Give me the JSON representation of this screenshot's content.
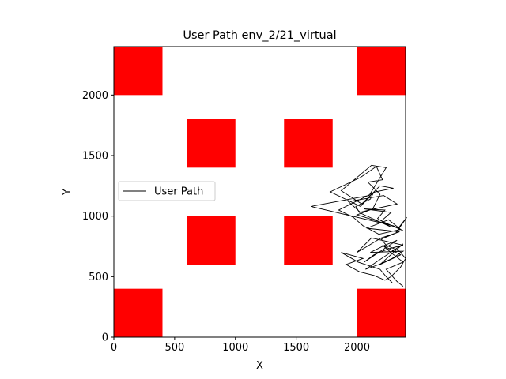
{
  "chart_data": {
    "type": "line",
    "title": "User Path env_2/21_virtual",
    "xlabel": "X",
    "ylabel": "Y",
    "xlim": [
      0,
      2400
    ],
    "ylim": [
      0,
      2400
    ],
    "xticks": [
      0,
      500,
      1000,
      1500,
      2000
    ],
    "yticks": [
      0,
      500,
      1000,
      1500,
      2000
    ],
    "legend": {
      "position": "center-left",
      "entries": [
        "User Path"
      ]
    },
    "obstacle_color": "#ff0000",
    "line_color": "#000000",
    "obstacles": [
      {
        "x0": 0,
        "y0": 2000,
        "x1": 400,
        "y1": 2400
      },
      {
        "x0": 2000,
        "y0": 2000,
        "x1": 2400,
        "y1": 2400
      },
      {
        "x0": 600,
        "y0": 1400,
        "x1": 1000,
        "y1": 1800
      },
      {
        "x0": 1400,
        "y0": 1400,
        "x1": 1800,
        "y1": 1800
      },
      {
        "x0": 600,
        "y0": 600,
        "x1": 1000,
        "y1": 1000
      },
      {
        "x0": 1400,
        "y0": 600,
        "x1": 1800,
        "y1": 1000
      },
      {
        "x0": 0,
        "y0": 0,
        "x1": 400,
        "y1": 400
      },
      {
        "x0": 2000,
        "y0": 0,
        "x1": 2400,
        "y1": 400
      }
    ],
    "series": [
      {
        "name": "User Path",
        "x": [
          2380,
          2330,
          2240,
          2380,
          2290,
          2210,
          2360,
          2190,
          2300,
          2380,
          2070,
          2180,
          2290,
          2380,
          2110,
          2230,
          2330,
          2060,
          2140,
          2260,
          2380,
          2120,
          2000,
          2200,
          2350,
          2080,
          2260,
          2360,
          2180,
          2050,
          1970,
          1850,
          2150,
          2300,
          2190,
          2040,
          1870,
          1930,
          2120,
          2240,
          2100,
          1620,
          2300,
          2380,
          2200,
          2280,
          2060,
          2230,
          2170,
          2280,
          2040,
          1930,
          2220,
          2330,
          2100,
          2020,
          1990,
          2110,
          2140,
          2030,
          1780,
          2030,
          2160,
          2210,
          2090,
          2190,
          2130,
          2000,
          2260,
          2340,
          2410,
          2320,
          2200,
          2240,
          2350,
          2400,
          2360,
          2320,
          2280,
          2230,
          2140,
          2020,
          1910,
          2050,
          1870,
          2010,
          2190,
          2240,
          2290
        ],
        "y": [
          420,
          460,
          560,
          620,
          690,
          760,
          680,
          600,
          700,
          770,
          560,
          600,
          650,
          710,
          700,
          760,
          800,
          620,
          680,
          730,
          760,
          820,
          700,
          820,
          870,
          900,
          970,
          890,
          850,
          920,
          990,
          1050,
          1200,
          1230,
          1250,
          1100,
          1210,
          1260,
          1420,
          1400,
          1170,
          1080,
          920,
          880,
          960,
          1030,
          1060,
          1050,
          980,
          910,
          1020,
          1120,
          1170,
          1100,
          1050,
          1030,
          1080,
          1140,
          1200,
          1080,
          1200,
          1320,
          1410,
          1300,
          1280,
          1180,
          1060,
          1010,
          930,
          900,
          990,
          860,
          810,
          760,
          710,
          650,
          580,
          540,
          500,
          470,
          510,
          540,
          600,
          650,
          700,
          620,
          560,
          500,
          450
        ]
      }
    ]
  }
}
